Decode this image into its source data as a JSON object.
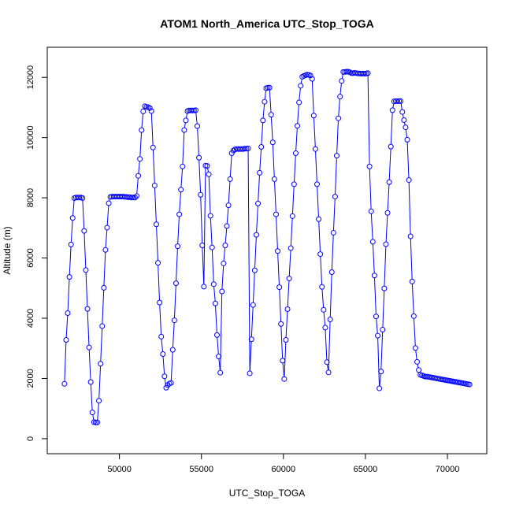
{
  "chart_data": {
    "type": "scatter",
    "title": "ATOM1 North_America UTC_Stop_TOGA",
    "xlabel": "UTC_Stop_TOGA",
    "ylabel": "Altitude (m)",
    "xlim": [
      45600,
      72400
    ],
    "ylim": [
      -500,
      13000
    ],
    "xticks": [
      50000,
      55000,
      60000,
      65000,
      70000
    ],
    "yticks": [
      0,
      2000,
      4000,
      6000,
      8000,
      10000,
      12000
    ],
    "grid": false,
    "marker": "open-circle",
    "connected": true,
    "color": "#0000ff",
    "series": [
      {
        "points": [
          [
            46650,
            1820
          ],
          [
            46750,
            3280
          ],
          [
            46850,
            4170
          ],
          [
            46950,
            5370
          ],
          [
            47050,
            6450
          ],
          [
            47150,
            7330
          ],
          [
            47250,
            7990
          ],
          [
            47350,
            8010
          ],
          [
            47450,
            8010
          ],
          [
            47550,
            8010
          ],
          [
            47650,
            8010
          ],
          [
            47750,
            7990
          ],
          [
            47850,
            6900
          ],
          [
            47950,
            5600
          ],
          [
            48050,
            4310
          ],
          [
            48150,
            3030
          ],
          [
            48250,
            1880
          ],
          [
            48350,
            870
          ],
          [
            48450,
            550
          ],
          [
            48550,
            540
          ],
          [
            48650,
            540
          ],
          [
            48750,
            1260
          ],
          [
            48850,
            2490
          ],
          [
            48950,
            3740
          ],
          [
            49050,
            5010
          ],
          [
            49150,
            6270
          ],
          [
            49250,
            7010
          ],
          [
            49350,
            7820
          ],
          [
            49450,
            8030
          ],
          [
            49550,
            8040
          ],
          [
            49650,
            8040
          ],
          [
            49750,
            8040
          ],
          [
            49850,
            8040
          ],
          [
            49950,
            8040
          ],
          [
            50050,
            8040
          ],
          [
            50150,
            8040
          ],
          [
            50250,
            8040
          ],
          [
            50350,
            8030
          ],
          [
            50450,
            8030
          ],
          [
            50550,
            8020
          ],
          [
            50650,
            8020
          ],
          [
            50750,
            8010
          ],
          [
            50850,
            8010
          ],
          [
            50950,
            8010
          ],
          [
            51050,
            8060
          ],
          [
            51150,
            8730
          ],
          [
            51250,
            9290
          ],
          [
            51350,
            10250
          ],
          [
            51450,
            10870
          ],
          [
            51550,
            11040
          ],
          [
            51650,
            11020
          ],
          [
            51750,
            11010
          ],
          [
            51850,
            10980
          ],
          [
            51950,
            10880
          ],
          [
            52050,
            9670
          ],
          [
            52150,
            8410
          ],
          [
            52250,
            7120
          ],
          [
            52350,
            5840
          ],
          [
            52450,
            4520
          ],
          [
            52550,
            3390
          ],
          [
            52650,
            2810
          ],
          [
            52750,
            2070
          ],
          [
            52850,
            1690
          ],
          [
            52950,
            1780
          ],
          [
            53050,
            1830
          ],
          [
            53150,
            1850
          ],
          [
            53250,
            2950
          ],
          [
            53350,
            3930
          ],
          [
            53450,
            5160
          ],
          [
            53550,
            6390
          ],
          [
            53650,
            7450
          ],
          [
            53750,
            8270
          ],
          [
            53850,
            9040
          ],
          [
            53950,
            10250
          ],
          [
            54050,
            10570
          ],
          [
            54150,
            10880
          ],
          [
            54250,
            10900
          ],
          [
            54350,
            10900
          ],
          [
            54450,
            10900
          ],
          [
            54550,
            10900
          ],
          [
            54650,
            10910
          ],
          [
            54750,
            10380
          ],
          [
            54850,
            9330
          ],
          [
            54950,
            8100
          ],
          [
            55050,
            6420
          ],
          [
            55150,
            5050
          ],
          [
            55250,
            9070
          ],
          [
            55350,
            9060
          ],
          [
            55450,
            8780
          ],
          [
            55550,
            7400
          ],
          [
            55650,
            6350
          ],
          [
            55750,
            5130
          ],
          [
            55850,
            4490
          ],
          [
            55950,
            3440
          ],
          [
            56050,
            2730
          ],
          [
            56150,
            2190
          ],
          [
            56250,
            4890
          ],
          [
            56350,
            5820
          ],
          [
            56450,
            6420
          ],
          [
            56550,
            7060
          ],
          [
            56650,
            7750
          ],
          [
            56750,
            8620
          ],
          [
            56850,
            9480
          ],
          [
            56950,
            9570
          ],
          [
            57050,
            9610
          ],
          [
            57150,
            9620
          ],
          [
            57250,
            9620
          ],
          [
            57350,
            9620
          ],
          [
            57450,
            9620
          ],
          [
            57550,
            9620
          ],
          [
            57650,
            9630
          ],
          [
            57750,
            9630
          ],
          [
            57850,
            9640
          ],
          [
            57950,
            2170
          ],
          [
            58050,
            3300
          ],
          [
            58150,
            4440
          ],
          [
            58250,
            5590
          ],
          [
            58350,
            6770
          ],
          [
            58450,
            7810
          ],
          [
            58550,
            8830
          ],
          [
            58650,
            9690
          ],
          [
            58750,
            10570
          ],
          [
            58850,
            11190
          ],
          [
            58950,
            11640
          ],
          [
            59050,
            11660
          ],
          [
            59150,
            11660
          ],
          [
            59250,
            10760
          ],
          [
            59350,
            9840
          ],
          [
            59450,
            8620
          ],
          [
            59550,
            7450
          ],
          [
            59650,
            6230
          ],
          [
            59750,
            5030
          ],
          [
            59850,
            3810
          ],
          [
            59950,
            2590
          ],
          [
            60050,
            1980
          ],
          [
            60150,
            3280
          ],
          [
            60250,
            4300
          ],
          [
            60350,
            5320
          ],
          [
            60450,
            6330
          ],
          [
            60550,
            7390
          ],
          [
            60650,
            8450
          ],
          [
            60750,
            9480
          ],
          [
            60850,
            10390
          ],
          [
            60950,
            11170
          ],
          [
            61050,
            11720
          ],
          [
            61150,
            12020
          ],
          [
            61250,
            12050
          ],
          [
            61350,
            12070
          ],
          [
            61450,
            12090
          ],
          [
            61550,
            12080
          ],
          [
            61650,
            12060
          ],
          [
            61750,
            11950
          ],
          [
            61850,
            10730
          ],
          [
            61950,
            9620
          ],
          [
            62050,
            8450
          ],
          [
            62150,
            7290
          ],
          [
            62250,
            6130
          ],
          [
            62350,
            5040
          ],
          [
            62450,
            4280
          ],
          [
            62550,
            3690
          ],
          [
            62650,
            2540
          ],
          [
            62750,
            2200
          ],
          [
            62850,
            3960
          ],
          [
            62950,
            5530
          ],
          [
            63050,
            6840
          ],
          [
            63150,
            8040
          ],
          [
            63250,
            9400
          ],
          [
            63350,
            10640
          ],
          [
            63450,
            11360
          ],
          [
            63550,
            11880
          ],
          [
            63650,
            12180
          ],
          [
            63750,
            12180
          ],
          [
            63850,
            12190
          ],
          [
            63950,
            12190
          ],
          [
            64050,
            12170
          ],
          [
            64150,
            12140
          ],
          [
            64250,
            12140
          ],
          [
            64350,
            12150
          ],
          [
            64450,
            12140
          ],
          [
            64550,
            12130
          ],
          [
            64650,
            12130
          ],
          [
            64750,
            12120
          ],
          [
            64850,
            12130
          ],
          [
            64950,
            12120
          ],
          [
            65050,
            12130
          ],
          [
            65150,
            12140
          ],
          [
            65250,
            9040
          ],
          [
            65350,
            7550
          ],
          [
            65450,
            6540
          ],
          [
            65550,
            5420
          ],
          [
            65650,
            4060
          ],
          [
            65750,
            3420
          ],
          [
            65850,
            1670
          ],
          [
            65950,
            2230
          ],
          [
            66050,
            3620
          ],
          [
            66150,
            4990
          ],
          [
            66250,
            6460
          ],
          [
            66350,
            7500
          ],
          [
            66450,
            8520
          ],
          [
            66550,
            9700
          ],
          [
            66650,
            10910
          ],
          [
            66750,
            11200
          ],
          [
            66850,
            11210
          ],
          [
            66950,
            11210
          ],
          [
            67050,
            11210
          ],
          [
            67150,
            11210
          ],
          [
            67250,
            10850
          ],
          [
            67350,
            10580
          ],
          [
            67450,
            10340
          ],
          [
            67550,
            9930
          ],
          [
            67650,
            8590
          ],
          [
            67750,
            6720
          ],
          [
            67850,
            5220
          ],
          [
            67950,
            4070
          ],
          [
            68050,
            3010
          ],
          [
            68150,
            2550
          ],
          [
            68250,
            2280
          ],
          [
            68350,
            2120
          ],
          [
            68450,
            2100
          ],
          [
            68550,
            2080
          ],
          [
            68650,
            2060
          ],
          [
            68750,
            2060
          ],
          [
            68850,
            2050
          ],
          [
            68950,
            2040
          ],
          [
            69050,
            2030
          ],
          [
            69150,
            2020
          ],
          [
            69250,
            2010
          ],
          [
            69350,
            2000
          ],
          [
            69450,
            1990
          ],
          [
            69550,
            1980
          ],
          [
            69650,
            1970
          ],
          [
            69750,
            1960
          ],
          [
            69850,
            1950
          ],
          [
            69950,
            1940
          ],
          [
            70050,
            1930
          ],
          [
            70150,
            1920
          ],
          [
            70250,
            1910
          ],
          [
            70350,
            1900
          ],
          [
            70450,
            1890
          ],
          [
            70550,
            1880
          ],
          [
            70650,
            1870
          ],
          [
            70750,
            1860
          ],
          [
            70850,
            1850
          ],
          [
            70950,
            1840
          ],
          [
            71050,
            1830
          ],
          [
            71150,
            1820
          ],
          [
            71250,
            1810
          ],
          [
            71350,
            1800
          ]
        ]
      }
    ]
  }
}
